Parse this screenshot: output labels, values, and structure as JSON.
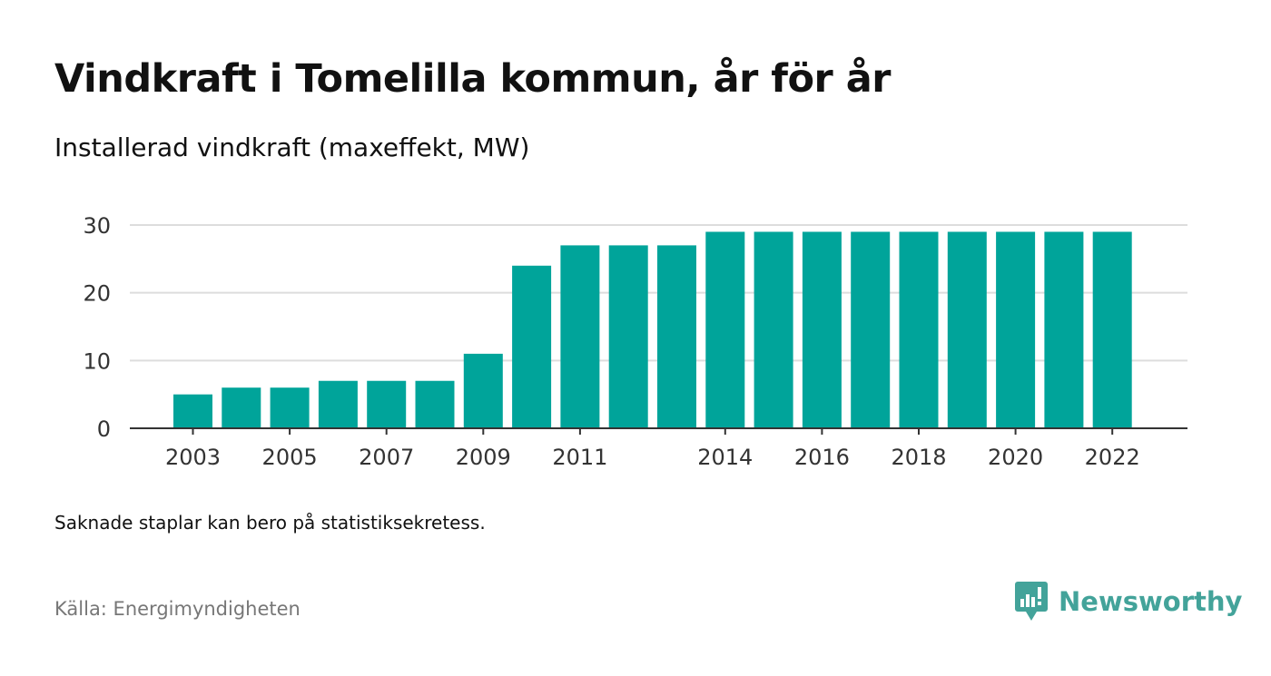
{
  "title": "Vindkraft i Tomelilla kommun, år för år",
  "subtitle": "Installerad vindkraft (maxeffekt, MW)",
  "note": "Saknade staplar kan bero på statistiksekretess.",
  "source": "Källa: Energimyndigheten",
  "brand": {
    "name": "Newsworthy",
    "icon": "newsworthy-logo-icon",
    "color": "#43a39a"
  },
  "colors": {
    "bar": "#00a49a",
    "grid": "#dddddd",
    "axis": "#333333"
  },
  "chart_data": {
    "type": "bar",
    "categories": [
      "2003",
      "2004",
      "2005",
      "2006",
      "2007",
      "2008",
      "2009",
      "2010",
      "2011",
      "2012",
      "2013",
      "2014",
      "2015",
      "2016",
      "2017",
      "2018",
      "2019",
      "2020",
      "2021",
      "2022"
    ],
    "values": [
      5,
      6,
      6,
      7,
      7,
      7,
      11,
      24,
      27,
      27,
      27,
      29,
      29,
      29,
      29,
      29,
      29,
      29,
      29,
      29
    ],
    "x_tick_labels": [
      "2003",
      "2005",
      "2007",
      "2009",
      "2011",
      "2014",
      "2016",
      "2018",
      "2020",
      "2022"
    ],
    "y_ticks": [
      0,
      10,
      20,
      30
    ],
    "ylim": [
      0,
      30
    ],
    "grid": true,
    "legend": "none",
    "xlabel": "",
    "ylabel": ""
  }
}
